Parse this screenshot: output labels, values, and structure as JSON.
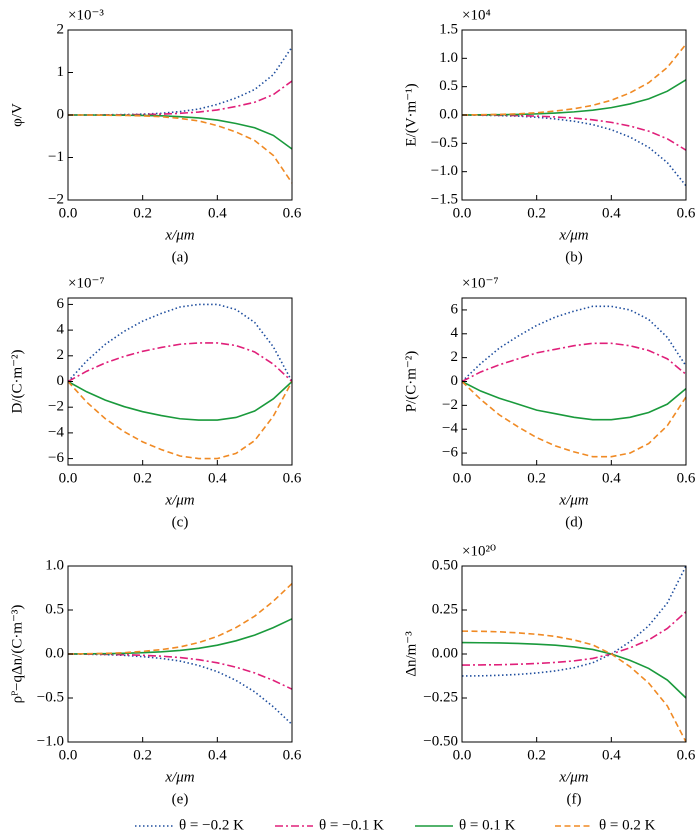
{
  "chart_data": [
    {
      "type": "line",
      "caption": "(a)",
      "ylabel": "φ/V",
      "xlabel": "x/μm",
      "offset": "×10⁻³",
      "x": [
        0,
        0.05,
        0.1,
        0.15,
        0.2,
        0.25,
        0.3,
        0.35,
        0.4,
        0.45,
        0.5,
        0.55,
        0.6
      ],
      "xlim": [
        0,
        0.6
      ],
      "xticks": [
        {
          "value": 0,
          "label": "0.0"
        },
        0.2,
        0.4,
        0.6
      ],
      "ylim": [
        -2,
        2
      ],
      "yticks": [
        {
          "value": -2,
          "label": "−2"
        },
        {
          "value": -1,
          "label": "−1"
        },
        0,
        1,
        2
      ],
      "series": [
        {
          "values": [
            0,
            0,
            0.005,
            0.01,
            0.02,
            0.04,
            0.08,
            0.14,
            0.25,
            0.4,
            0.6,
            0.95,
            1.6
          ]
        },
        {
          "values": [
            0,
            0,
            0.003,
            0.005,
            0.01,
            0.02,
            0.04,
            0.07,
            0.12,
            0.2,
            0.3,
            0.48,
            0.8
          ]
        },
        {
          "values": [
            0,
            0,
            -0.003,
            -0.005,
            -0.01,
            -0.02,
            -0.04,
            -0.07,
            -0.12,
            -0.2,
            -0.3,
            -0.48,
            -0.8
          ]
        },
        {
          "values": [
            0,
            0,
            -0.005,
            -0.01,
            -0.02,
            -0.04,
            -0.08,
            -0.14,
            -0.25,
            -0.4,
            -0.6,
            -0.95,
            -1.6
          ]
        }
      ]
    },
    {
      "type": "line",
      "caption": "(b)",
      "ylabel": "E/(V·m⁻¹)",
      "xlabel": "x/μm",
      "offset": "×10⁴",
      "x": [
        0,
        0.05,
        0.1,
        0.15,
        0.2,
        0.25,
        0.3,
        0.35,
        0.4,
        0.45,
        0.5,
        0.55,
        0.6
      ],
      "xlim": [
        0,
        0.6
      ],
      "xticks": [
        {
          "value": 0,
          "label": "0.0"
        },
        0.2,
        0.4,
        0.6
      ],
      "ylim": [
        -1.5,
        1.5
      ],
      "yticks": [
        {
          "value": -1.5,
          "label": "−1.5"
        },
        {
          "value": -1,
          "label": "−1.0"
        },
        {
          "value": -0.5,
          "label": "−0.5"
        },
        {
          "value": 0,
          "label": "0.0"
        },
        0.5,
        {
          "value": 1,
          "label": "1.0"
        },
        1.5
      ],
      "series": [
        {
          "values": [
            0,
            -0.005,
            -0.01,
            -0.02,
            -0.04,
            -0.07,
            -0.11,
            -0.17,
            -0.26,
            -0.39,
            -0.57,
            -0.84,
            -1.25
          ]
        },
        {
          "values": [
            0,
            -0.003,
            -0.005,
            -0.01,
            -0.02,
            -0.035,
            -0.055,
            -0.085,
            -0.13,
            -0.195,
            -0.285,
            -0.42,
            -0.62
          ]
        },
        {
          "values": [
            0,
            0.003,
            0.005,
            0.01,
            0.02,
            0.035,
            0.055,
            0.085,
            0.13,
            0.195,
            0.285,
            0.42,
            0.62
          ]
        },
        {
          "values": [
            0,
            0.005,
            0.01,
            0.02,
            0.04,
            0.07,
            0.11,
            0.17,
            0.26,
            0.39,
            0.57,
            0.84,
            1.25
          ]
        }
      ]
    },
    {
      "type": "line",
      "caption": "(c)",
      "ylabel": "D/(C·m⁻²)",
      "xlabel": "x/μm",
      "offset": "×10⁻⁷",
      "x": [
        0,
        0.05,
        0.1,
        0.15,
        0.2,
        0.25,
        0.3,
        0.35,
        0.4,
        0.45,
        0.5,
        0.55,
        0.6
      ],
      "xlim": [
        0,
        0.6
      ],
      "xticks": [
        {
          "value": 0,
          "label": "0.0"
        },
        0.2,
        0.4,
        0.6
      ],
      "ylim": [
        -6.5,
        6.5
      ],
      "yticks": [
        {
          "value": -6,
          "label": "−6"
        },
        {
          "value": -4,
          "label": "−4"
        },
        {
          "value": -2,
          "label": "−2"
        },
        0,
        2,
        4,
        6
      ],
      "series": [
        {
          "values": [
            0,
            1.6,
            2.9,
            3.9,
            4.7,
            5.3,
            5.8,
            6.0,
            6.0,
            5.6,
            4.6,
            2.7,
            0
          ]
        },
        {
          "values": [
            0,
            0.8,
            1.45,
            1.95,
            2.35,
            2.65,
            2.9,
            3.0,
            3.0,
            2.8,
            2.3,
            1.35,
            0
          ]
        },
        {
          "values": [
            0,
            -0.8,
            -1.45,
            -1.95,
            -2.35,
            -2.65,
            -2.9,
            -3.0,
            -3.0,
            -2.8,
            -2.3,
            -1.35,
            0
          ]
        },
        {
          "values": [
            0,
            -1.6,
            -2.9,
            -3.9,
            -4.7,
            -5.3,
            -5.8,
            -6.0,
            -6.0,
            -5.6,
            -4.6,
            -2.7,
            0
          ]
        }
      ]
    },
    {
      "type": "line",
      "caption": "(d)",
      "ylabel": "P/(C·m⁻²)",
      "xlabel": "x/μm",
      "offset": "×10⁻⁷",
      "x": [
        0,
        0.05,
        0.1,
        0.15,
        0.2,
        0.25,
        0.3,
        0.35,
        0.4,
        0.45,
        0.5,
        0.55,
        0.6
      ],
      "xlim": [
        0,
        0.6
      ],
      "xticks": [
        {
          "value": 0,
          "label": "0.0"
        },
        0.2,
        0.4,
        0.6
      ],
      "ylim": [
        -7,
        7
      ],
      "yticks": [
        {
          "value": -6,
          "label": "−6"
        },
        {
          "value": -4,
          "label": "−4"
        },
        {
          "value": -2,
          "label": "−2"
        },
        0,
        2,
        4,
        6
      ],
      "series": [
        {
          "values": [
            0,
            1.5,
            2.8,
            3.8,
            4.7,
            5.4,
            5.9,
            6.3,
            6.3,
            6.0,
            5.2,
            3.7,
            1.3
          ]
        },
        {
          "values": [
            0,
            0.8,
            1.4,
            1.9,
            2.4,
            2.7,
            3.0,
            3.2,
            3.2,
            3.0,
            2.6,
            1.9,
            0.6
          ]
        },
        {
          "values": [
            0,
            -0.8,
            -1.4,
            -1.9,
            -2.4,
            -2.7,
            -3.0,
            -3.2,
            -3.2,
            -3.0,
            -2.6,
            -1.9,
            -0.6
          ]
        },
        {
          "values": [
            0,
            -1.5,
            -2.8,
            -3.8,
            -4.7,
            -5.4,
            -5.9,
            -6.3,
            -6.3,
            -6.0,
            -5.2,
            -3.7,
            -1.3
          ]
        }
      ]
    },
    {
      "type": "line",
      "caption": "(e)",
      "ylabel": "ρᴾ−qΔn/(C·m⁻³)",
      "xlabel": "x/μm",
      "x": [
        0,
        0.05,
        0.1,
        0.15,
        0.2,
        0.25,
        0.3,
        0.35,
        0.4,
        0.45,
        0.5,
        0.55,
        0.6
      ],
      "xlim": [
        0,
        0.6
      ],
      "xticks": [
        {
          "value": 0,
          "label": "0.0"
        },
        0.2,
        0.4,
        0.6
      ],
      "ylim": [
        -1,
        1
      ],
      "yticks": [
        {
          "value": -1,
          "label": "−1.0"
        },
        {
          "value": -0.5,
          "label": "−0.5"
        },
        {
          "value": 0,
          "label": "0.0"
        },
        0.5,
        {
          "value": 1,
          "label": "1.0"
        }
      ],
      "series": [
        {
          "values": [
            0,
            -0.003,
            -0.007,
            -0.015,
            -0.03,
            -0.05,
            -0.08,
            -0.13,
            -0.2,
            -0.3,
            -0.43,
            -0.6,
            -0.8
          ]
        },
        {
          "values": [
            0,
            -0.002,
            -0.004,
            -0.008,
            -0.015,
            -0.025,
            -0.04,
            -0.065,
            -0.1,
            -0.15,
            -0.215,
            -0.3,
            -0.4
          ]
        },
        {
          "values": [
            0,
            0.002,
            0.004,
            0.008,
            0.015,
            0.025,
            0.04,
            0.065,
            0.1,
            0.15,
            0.215,
            0.3,
            0.4
          ]
        },
        {
          "values": [
            0,
            0.003,
            0.007,
            0.015,
            0.03,
            0.05,
            0.08,
            0.13,
            0.2,
            0.3,
            0.43,
            0.6,
            0.8
          ]
        }
      ]
    },
    {
      "type": "line",
      "caption": "(f)",
      "ylabel": "Δn/m⁻³",
      "xlabel": "x/μm",
      "offset": "×10²⁰",
      "x": [
        0,
        0.05,
        0.1,
        0.15,
        0.2,
        0.25,
        0.3,
        0.35,
        0.4,
        0.45,
        0.5,
        0.55,
        0.6
      ],
      "xlim": [
        0,
        0.6
      ],
      "xticks": [
        {
          "value": 0,
          "label": "0.0"
        },
        0.2,
        0.4,
        0.6
      ],
      "ylim": [
        -0.5,
        0.5
      ],
      "yticks": [
        {
          "value": -0.5,
          "label": "−0.50"
        },
        {
          "value": -0.25,
          "label": "−0.25"
        },
        {
          "value": 0,
          "label": "0.00"
        },
        0.25,
        {
          "value": 0.5,
          "label": "0.50"
        }
      ],
      "series": [
        {
          "values": [
            -0.125,
            -0.124,
            -0.121,
            -0.116,
            -0.108,
            -0.096,
            -0.078,
            -0.05,
            0,
            0.07,
            0.16,
            0.29,
            0.5
          ]
        },
        {
          "values": [
            -0.063,
            -0.062,
            -0.061,
            -0.058,
            -0.054,
            -0.048,
            -0.039,
            -0.025,
            0,
            0.035,
            0.08,
            0.145,
            0.24
          ]
        },
        {
          "values": [
            0.065,
            0.064,
            0.063,
            0.06,
            0.056,
            0.05,
            0.04,
            0.026,
            0,
            -0.036,
            -0.082,
            -0.148,
            -0.25
          ]
        },
        {
          "values": [
            0.13,
            0.129,
            0.126,
            0.12,
            0.112,
            0.1,
            0.08,
            0.052,
            0,
            -0.072,
            -0.165,
            -0.295,
            -0.5
          ]
        }
      ]
    }
  ],
  "legend": {
    "entries": [
      {
        "name": "θ = −0.2 K",
        "color": "#1f4e9e",
        "dash": "dotted"
      },
      {
        "name": "θ = −0.1 K",
        "color": "#e0207a",
        "dash": "dashdot"
      },
      {
        "name": "θ = 0.1 K",
        "color": "#1a9a3c",
        "dash": "solid"
      },
      {
        "name": "θ = 0.2 K",
        "color": "#f08a24",
        "dash": "dashed"
      }
    ]
  }
}
